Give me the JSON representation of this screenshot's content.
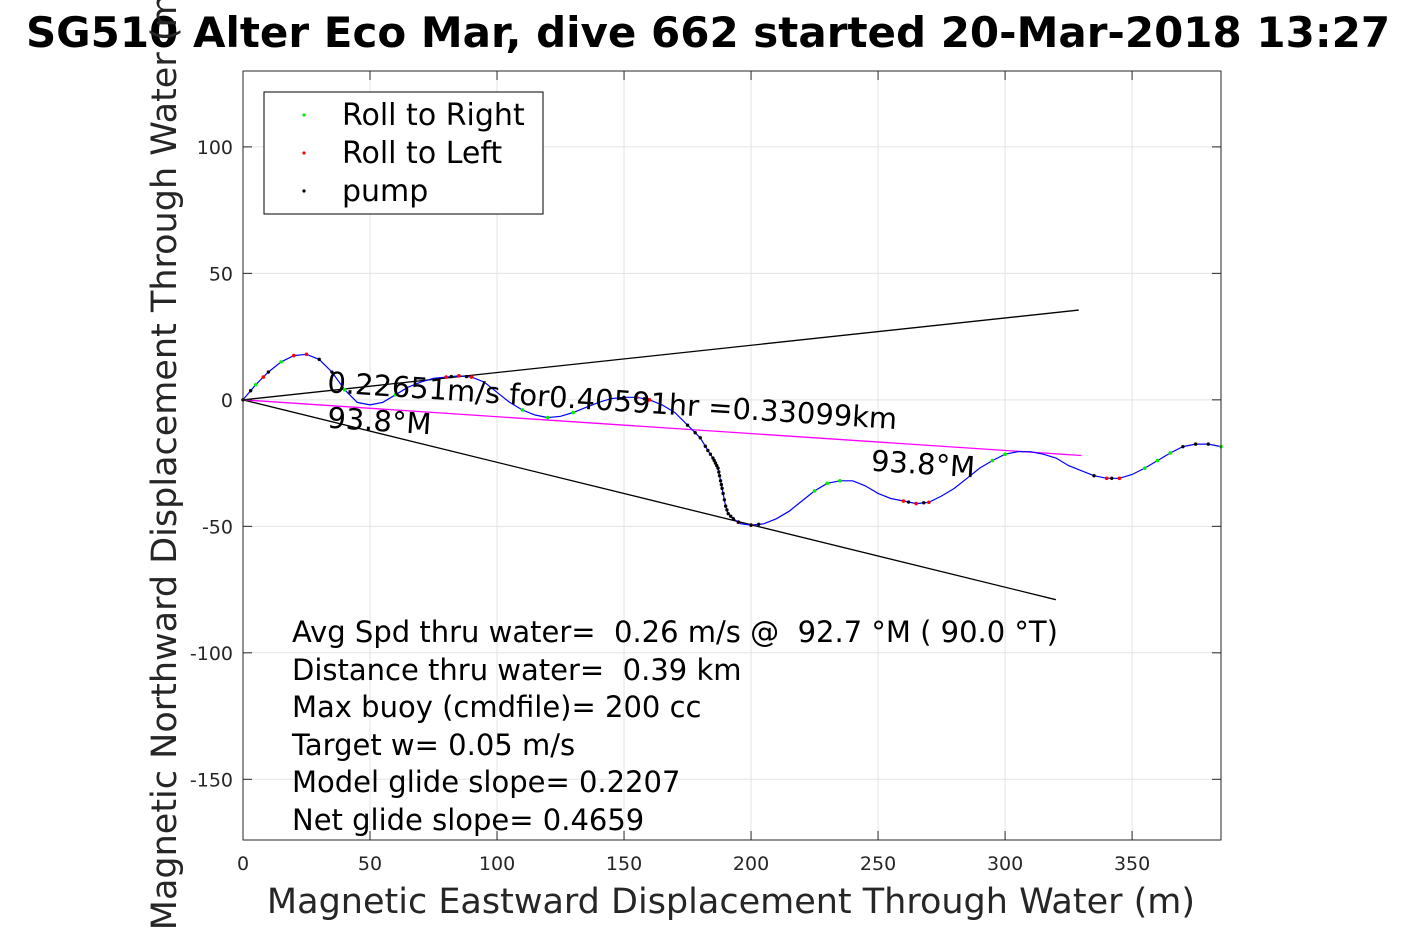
{
  "chart_data": {
    "type": "scatter",
    "title": "SG510 Alter Eco Mar, dive 662 started 20-Mar-2018 13:27",
    "xlabel": "Magnetic Eastward Displacement Through Water (m)",
    "ylabel": "Magnetic Northward Displacement Through Water (m)",
    "xlim": [
      0,
      385
    ],
    "ylim": [
      -174,
      130
    ],
    "xticks": [
      0,
      50,
      100,
      150,
      200,
      250,
      300,
      350
    ],
    "yticks": [
      -150,
      -100,
      -50,
      0,
      50,
      100
    ],
    "xtick_labels": [
      "0",
      "50",
      "100",
      "150",
      "200",
      "250",
      "300",
      "350"
    ],
    "ytick_labels": [
      "-150",
      "-100",
      "-50",
      "0",
      "50",
      "100"
    ],
    "grid": true,
    "legend_position": "top-left",
    "legend": [
      {
        "label": "Roll to Right",
        "color": "#00ee00"
      },
      {
        "label": "Roll to Left",
        "color": "#ff0000"
      },
      {
        "label": "pump",
        "color": "#000000"
      }
    ],
    "track": {
      "color": "#0000ff",
      "points": [
        [
          0,
          0
        ],
        [
          5,
          6
        ],
        [
          10,
          11
        ],
        [
          15,
          15
        ],
        [
          20,
          17.5
        ],
        [
          25,
          18
        ],
        [
          30,
          16
        ],
        [
          35,
          11
        ],
        [
          40,
          4
        ],
        [
          45,
          -1
        ],
        [
          50,
          -2
        ],
        [
          55,
          -1
        ],
        [
          60,
          2
        ],
        [
          65,
          5
        ],
        [
          70,
          7
        ],
        [
          75,
          8.5
        ],
        [
          80,
          9
        ],
        [
          85,
          9.5
        ],
        [
          90,
          9
        ],
        [
          95,
          7
        ],
        [
          100,
          3
        ],
        [
          105,
          -1
        ],
        [
          110,
          -4
        ],
        [
          115,
          -6
        ],
        [
          120,
          -7
        ],
        [
          125,
          -6.5
        ],
        [
          130,
          -5
        ],
        [
          135,
          -3
        ],
        [
          140,
          -1
        ],
        [
          145,
          0.5
        ],
        [
          150,
          1
        ],
        [
          155,
          1
        ],
        [
          160,
          0
        ],
        [
          165,
          -2
        ],
        [
          170,
          -5
        ],
        [
          175,
          -10
        ],
        [
          180,
          -15
        ],
        [
          183,
          -20
        ],
        [
          185,
          -23
        ],
        [
          187,
          -27
        ],
        [
          188,
          -32
        ],
        [
          189,
          -37
        ],
        [
          190,
          -42
        ],
        [
          191,
          -45
        ],
        [
          193,
          -47
        ],
        [
          196,
          -49
        ],
        [
          200,
          -49.5
        ],
        [
          205,
          -49
        ],
        [
          210,
          -47
        ],
        [
          215,
          -44
        ],
        [
          220,
          -40
        ],
        [
          225,
          -36
        ],
        [
          230,
          -33
        ],
        [
          235,
          -32
        ],
        [
          240,
          -32
        ],
        [
          245,
          -34
        ],
        [
          250,
          -37
        ],
        [
          255,
          -39
        ],
        [
          260,
          -40
        ],
        [
          265,
          -41
        ],
        [
          270,
          -40.5
        ],
        [
          275,
          -38
        ],
        [
          280,
          -35
        ],
        [
          285,
          -31
        ],
        [
          290,
          -27
        ],
        [
          295,
          -24
        ],
        [
          300,
          -21.5
        ],
        [
          305,
          -20.5
        ],
        [
          310,
          -20.5
        ],
        [
          315,
          -21.5
        ],
        [
          320,
          -23
        ],
        [
          325,
          -26
        ],
        [
          330,
          -28
        ],
        [
          335,
          -30
        ],
        [
          340,
          -31
        ],
        [
          345,
          -31
        ],
        [
          350,
          -29.5
        ],
        [
          355,
          -27
        ],
        [
          360,
          -24
        ],
        [
          365,
          -21
        ],
        [
          370,
          -18.5
        ],
        [
          375,
          -17.5
        ],
        [
          380,
          -17.5
        ],
        [
          385,
          -18.5
        ]
      ]
    },
    "roll_right_x": [
      5,
      15,
      40,
      60,
      110,
      120,
      130,
      140,
      225,
      230,
      235,
      295,
      300,
      355,
      360,
      365,
      385
    ],
    "roll_left_x": [
      8,
      20,
      25,
      80,
      85,
      90,
      155,
      160,
      195,
      200,
      260,
      265,
      270,
      340,
      345
    ],
    "pump_x": [
      0,
      3,
      10,
      30,
      35,
      82,
      88,
      150,
      158,
      175,
      178,
      180,
      182,
      183,
      184,
      185,
      185.5,
      186,
      186.5,
      187,
      187.3,
      187.6,
      188,
      188.3,
      188.6,
      189,
      189.5,
      190,
      190.5,
      191,
      192,
      193,
      195,
      200,
      203,
      262,
      268,
      335,
      342,
      370,
      375,
      380
    ],
    "lines": [
      {
        "name": "upper",
        "color": "#000000",
        "points": [
          [
            0,
            0
          ],
          [
            329,
            35.5
          ]
        ]
      },
      {
        "name": "lower",
        "color": "#000000",
        "points": [
          [
            0,
            0
          ],
          [
            320,
            -79
          ]
        ]
      },
      {
        "name": "heading",
        "color": "#ff00ff",
        "points": [
          [
            0,
            0
          ],
          [
            330,
            -22
          ]
        ]
      }
    ],
    "annotations": [
      {
        "text": "0.22651m/s for0.40591hr =0.33099km",
        "x": 33,
        "y": 3,
        "rotation": 3.7
      },
      {
        "text": "93.8°M",
        "x": 33,
        "y": -11,
        "rotation": 3.7
      },
      {
        "text": "93.8°M",
        "x": 247,
        "y": -28,
        "rotation": 3.7
      }
    ],
    "stats": [
      "Avg Spd thru water=  0.26 m/s @  92.7 °M ( 90.0 °T)",
      "Distance thru water=  0.39 km",
      "Max buoy (cmdfile)= 200 cc",
      "Target w= 0.05 m/s",
      "Model glide slope= 0.2207",
      "Net glide slope= 0.4659"
    ]
  }
}
